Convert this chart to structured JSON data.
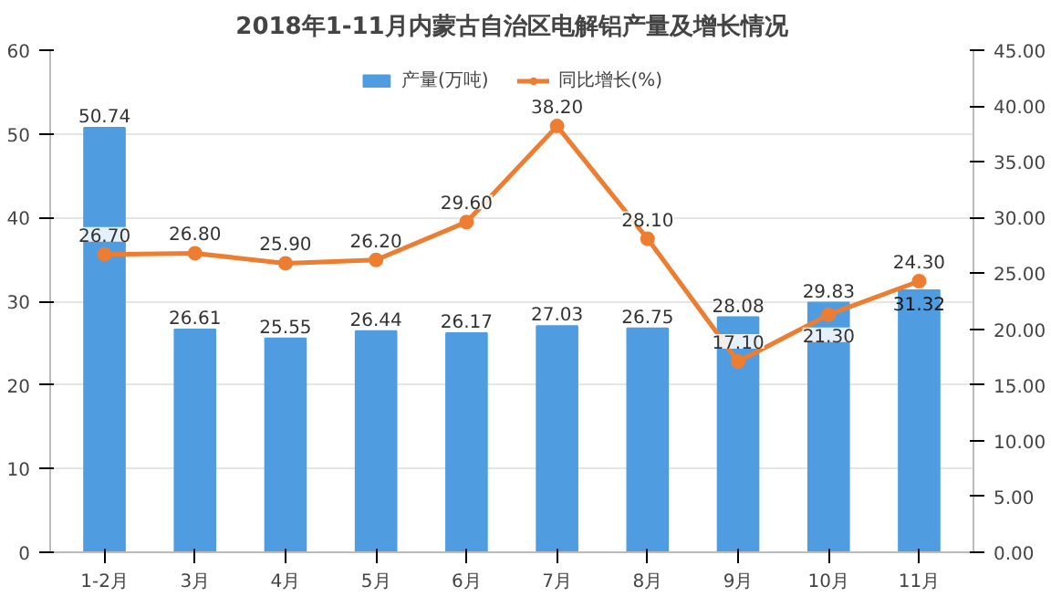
{
  "chart_data": {
    "type": "bar",
    "title": "2018年1-11月内蒙古自治区电解铝产量及增长情况",
    "categories": [
      "1-2月",
      "3月",
      "4月",
      "5月",
      "6月",
      "7月",
      "8月",
      "9月",
      "10月",
      "11月"
    ],
    "series": [
      {
        "name": "产量(万吨)",
        "color": "#4f9de0",
        "values": [
          50.74,
          26.61,
          25.55,
          26.44,
          26.17,
          27.03,
          26.75,
          28.08,
          29.83,
          31.32
        ],
        "value_labels": [
          "50.74",
          "26.61",
          "25.55",
          "26.44",
          "26.17",
          "27.03",
          "26.75",
          "28.08",
          "29.83",
          "31.32"
        ]
      },
      {
        "name": "同比增长(%)",
        "type": "line",
        "axis": "y2",
        "color": "#ed7d31",
        "values": [
          26.7,
          26.8,
          25.9,
          26.2,
          29.6,
          38.2,
          28.1,
          17.1,
          21.3,
          24.3
        ],
        "value_labels": [
          "26.70",
          "26.80",
          "25.90",
          "26.20",
          "29.60",
          "38.20",
          "28.10",
          "17.10",
          "21.30",
          "24.30"
        ]
      }
    ],
    "ylim": [
      0,
      60
    ],
    "yticks": [
      0,
      10,
      20,
      30,
      40,
      50,
      60
    ],
    "y2lim": [
      0,
      45
    ],
    "y2ticks": [
      {
        "value": 0,
        "label": "0.00"
      },
      {
        "value": 5,
        "label": "5.00"
      },
      {
        "value": 10,
        "label": "10.00"
      },
      {
        "value": 15,
        "label": "15.00"
      },
      {
        "value": 20,
        "label": "20.00"
      },
      {
        "value": 25,
        "label": "25.00"
      },
      {
        "value": 30,
        "label": "30.00"
      },
      {
        "value": 35,
        "label": "35.00"
      },
      {
        "value": 40,
        "label": "40.00"
      },
      {
        "value": 45,
        "label": "45.00"
      }
    ],
    "grid": "y",
    "legend": "top",
    "marker": "circle"
  }
}
